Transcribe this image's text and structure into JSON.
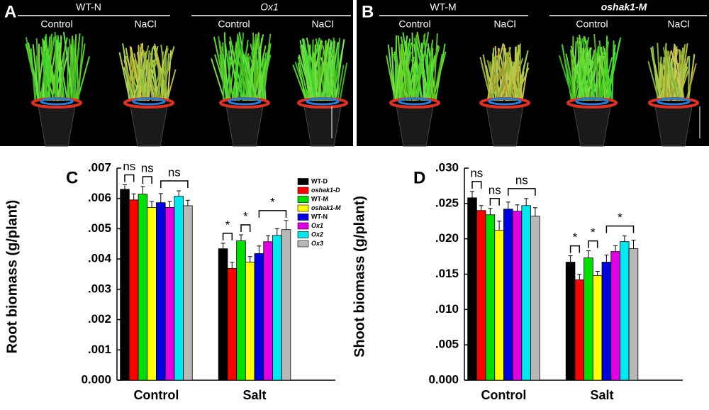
{
  "photos": [
    {
      "label": "A",
      "groups": [
        {
          "name": "WT-N",
          "conditions": [
            "Control",
            "NaCl"
          ]
        },
        {
          "name": "Ox1",
          "conditions": [
            "Control",
            "NaCl"
          ]
        }
      ]
    },
    {
      "label": "B",
      "groups": [
        {
          "name": "WT-M",
          "conditions": [
            "Control",
            "NaCl"
          ]
        },
        {
          "name": "oshak1-M",
          "conditions": [
            "Control",
            "NaCl"
          ]
        }
      ]
    }
  ],
  "chart_data": [
    {
      "type": "bar",
      "label": "C",
      "y_label": "Root biomass (g/plant)",
      "categories": [
        "Control",
        "Salt"
      ],
      "series": [
        {
          "name": "WT-D",
          "color": "#000000",
          "values": [
            0.0063,
            0.00434
          ],
          "errors": [
            0.00015,
            0.00018
          ]
        },
        {
          "name": "oshak1-D",
          "color": "#ff0000",
          "values": [
            0.00595,
            0.00369
          ],
          "errors": [
            0.0002,
            0.0002
          ]
        },
        {
          "name": "WT-M",
          "color": "#00e000",
          "values": [
            0.00614,
            0.0046
          ],
          "errors": [
            0.00025,
            0.0002
          ]
        },
        {
          "name": "oshak1-M",
          "color": "#ffff00",
          "values": [
            0.0057,
            0.0039
          ],
          "errors": [
            0.0002,
            0.00018
          ]
        },
        {
          "name": "WT-N",
          "color": "#0000e0",
          "values": [
            0.00586,
            0.00418
          ],
          "errors": [
            0.0003,
            0.00025
          ]
        },
        {
          "name": "Ox1",
          "color": "#e000e0",
          "values": [
            0.0057,
            0.00457
          ],
          "errors": [
            0.0002,
            0.0002
          ]
        },
        {
          "name": "Ox2",
          "color": "#00e8f0",
          "values": [
            0.00607,
            0.00478
          ],
          "errors": [
            0.00018,
            0.00022
          ]
        },
        {
          "name": "Ox3",
          "color": "#b8b8b8",
          "values": [
            0.00576,
            0.00497
          ],
          "errors": [
            0.00018,
            0.0003
          ]
        }
      ],
      "ylim": [
        0,
        0.007
      ],
      "yticks": [
        {
          "value": 0,
          "label": "0.000"
        },
        {
          "value": 0.001,
          "label": ".001"
        },
        {
          "value": 0.002,
          "label": ".002"
        },
        {
          "value": 0.003,
          "label": ".003"
        },
        {
          "value": 0.004,
          "label": ".004"
        },
        {
          "value": 0.005,
          "label": ".005"
        },
        {
          "value": 0.006,
          "label": ".006"
        },
        {
          "value": 0.007,
          "label": ".007"
        }
      ],
      "legend": true,
      "annotations": [
        "ns",
        "ns",
        "ns",
        "*",
        "*",
        "*"
      ]
    },
    {
      "type": "bar",
      "label": "D",
      "y_label": "Shoot biomass (g/plant)",
      "categories": [
        "Control",
        "Salt"
      ],
      "series": [
        {
          "color": "#000000",
          "values": [
            0.0258,
            0.0167
          ],
          "errors": [
            0.0009,
            0.0009
          ]
        },
        {
          "color": "#ff0000",
          "values": [
            0.024,
            0.0142
          ],
          "errors": [
            0.0007,
            0.0008
          ]
        },
        {
          "color": "#00e000",
          "values": [
            0.0234,
            0.0173
          ],
          "errors": [
            0.0009,
            0.001
          ]
        },
        {
          "color": "#ffff00",
          "values": [
            0.0212,
            0.0148
          ],
          "errors": [
            0.0013,
            0.0006
          ]
        },
        {
          "color": "#0000e0",
          "values": [
            0.0242,
            0.0167
          ],
          "errors": [
            0.001,
            0.001
          ]
        },
        {
          "color": "#e000e0",
          "values": [
            0.0239,
            0.0182
          ],
          "errors": [
            0.0009,
            0.0008
          ]
        },
        {
          "color": "#00e8f0",
          "values": [
            0.0247,
            0.0196
          ],
          "errors": [
            0.001,
            0.0008
          ]
        },
        {
          "color": "#b8b8b8",
          "values": [
            0.0232,
            0.0186
          ],
          "errors": [
            0.0012,
            0.0012
          ]
        }
      ],
      "ylim": [
        0,
        0.03
      ],
      "yticks": [
        {
          "value": 0,
          "label": "0.000"
        },
        {
          "value": 0.005,
          "label": ".005"
        },
        {
          "value": 0.01,
          "label": ".010"
        },
        {
          "value": 0.015,
          "label": ".015"
        },
        {
          "value": 0.02,
          "label": ".020"
        },
        {
          "value": 0.025,
          "label": ".025"
        },
        {
          "value": 0.03,
          "label": ".030"
        }
      ],
      "legend": false,
      "annotations": [
        "ns",
        "ns",
        "ns",
        "*",
        "*",
        "*"
      ]
    }
  ]
}
